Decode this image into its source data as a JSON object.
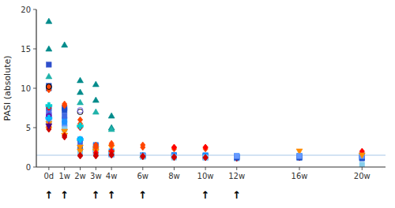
{
  "chart_data": {
    "type": "scatter",
    "y_label": "PASI (absolute)",
    "xlim": [
      -0.8,
      21.5
    ],
    "xticks": [
      {
        "value": 0,
        "label": "0d"
      },
      {
        "value": 1,
        "label": "1w"
      },
      {
        "value": 2,
        "label": "2w"
      },
      {
        "value": 3,
        "label": "3w"
      },
      {
        "value": 4,
        "label": "4w"
      },
      {
        "value": 6,
        "label": "6w"
      },
      {
        "value": 8,
        "label": "8w"
      },
      {
        "value": 10,
        "label": "10w"
      },
      {
        "value": 12,
        "label": "12w"
      },
      {
        "value": 16,
        "label": "16w"
      },
      {
        "value": 20,
        "label": "20w"
      }
    ],
    "ylim": [
      0,
      20
    ],
    "yticks": [
      0,
      5,
      10,
      15,
      20
    ],
    "grid": false,
    "reference_line": {
      "value": 1.5,
      "color": "#A8C8E8"
    },
    "annotations": [
      {
        "x": 0,
        "text": "↑"
      },
      {
        "x": 1,
        "text": "↑"
      },
      {
        "x": 3,
        "text": "↑"
      },
      {
        "x": 4,
        "text": "↑"
      },
      {
        "x": 6,
        "text": "↑"
      },
      {
        "x": 10,
        "text": "↑"
      },
      {
        "x": 12,
        "text": "↑"
      }
    ],
    "series": [
      {
        "color": "#008B8B",
        "marker": "triangle-up",
        "x": [
          0,
          1,
          2,
          3,
          4,
          6
        ],
        "values": [
          18.5,
          15.5,
          11.0,
          10.5,
          5.0,
          1.5
        ]
      },
      {
        "color": "#008B8B",
        "marker": "triangle-up",
        "x": [
          0,
          2,
          3,
          4
        ],
        "values": [
          15.0,
          9.5,
          8.5,
          6.5
        ]
      },
      {
        "color": "#20B2AA",
        "marker": "triangle-up",
        "x": [
          0,
          2,
          3,
          4
        ],
        "values": [
          11.5,
          8.2,
          7.0,
          4.8
        ]
      },
      {
        "color": "#2F4FCC",
        "marker": "square",
        "x": [
          0
        ],
        "values": [
          13.0
        ]
      },
      {
        "color": "#1E4FCC",
        "marker": "square",
        "x": [
          0,
          1,
          2,
          3,
          4,
          6,
          8,
          10,
          12,
          16,
          20
        ],
        "values": [
          10.3,
          7.5,
          2.0,
          2.0,
          1.6,
          1.4,
          1.5,
          1.4,
          1.3,
          1.3,
          1.5
        ]
      },
      {
        "color": "#1E4FCC",
        "marker": "square",
        "x": [
          0,
          1,
          2,
          3,
          4,
          6,
          8,
          10,
          12,
          16,
          20
        ],
        "values": [
          10.0,
          7.2,
          2.5,
          2.3,
          1.7,
          1.4,
          1.4,
          1.3,
          1.3,
          1.3,
          1.2
        ]
      },
      {
        "color": "#1E90FF",
        "marker": "square",
        "x": [
          0,
          1,
          2,
          3,
          4,
          6,
          8,
          10,
          12,
          16,
          20
        ],
        "values": [
          7.5,
          6.0,
          3.5,
          2.8,
          2.0,
          1.4,
          1.4,
          1.3,
          1.3,
          1.4,
          1.2
        ]
      },
      {
        "color": "#4169E1",
        "marker": "square",
        "x": [
          0,
          1,
          2,
          3,
          4
        ],
        "values": [
          7.2,
          6.5,
          3.2,
          2.7,
          1.8
        ]
      },
      {
        "color": "#1E90FF",
        "marker": "square",
        "x": [
          0,
          1,
          2,
          3,
          4,
          6,
          8,
          10,
          12,
          16,
          20
        ],
        "values": [
          6.5,
          5.5,
          2.0,
          2.2,
          1.7,
          1.5,
          1.5,
          1.5,
          1.4,
          1.4,
          1.4
        ]
      },
      {
        "color": "#6699FF",
        "marker": "square",
        "x": [
          0,
          1,
          2,
          3,
          4,
          6,
          8,
          10,
          12,
          16,
          20
        ],
        "values": [
          6.0,
          5.0,
          1.8,
          1.9,
          1.6,
          1.4,
          1.3,
          1.2,
          1.2,
          1.2,
          1.3
        ]
      },
      {
        "color": "#87CEEB",
        "marker": "square",
        "x": [
          0,
          1,
          2,
          3,
          4,
          6,
          8,
          10,
          12,
          16,
          20
        ],
        "values": [
          5.8,
          4.8,
          1.7,
          1.8,
          1.6,
          1.3,
          1.2,
          1.2,
          1.1,
          1.2,
          0.3
        ]
      },
      {
        "color": "#FF8C00",
        "marker": "triangle-down",
        "x": [
          0,
          1,
          2,
          3,
          4,
          16
        ],
        "values": [
          5.5,
          4.5,
          2.5,
          2.3,
          2.5,
          2.0
        ]
      },
      {
        "color": "#FF8C00",
        "marker": "triangle-down",
        "x": [
          0,
          1,
          2,
          3,
          4
        ],
        "values": [
          4.8,
          4.0,
          2.0,
          2.0,
          1.8
        ]
      },
      {
        "color": "#FF4500",
        "marker": "diamond",
        "x": [
          0,
          1,
          2,
          3,
          4,
          6,
          8,
          10
        ],
        "values": [
          10.2,
          8.0,
          6.0,
          2.8,
          3.0,
          2.8,
          2.5,
          2.5
        ]
      },
      {
        "color": "#FF4500",
        "marker": "diamond",
        "x": [
          0,
          1,
          2,
          3,
          4,
          6,
          8,
          10
        ],
        "values": [
          9.8,
          7.8,
          5.5,
          2.5,
          2.8,
          2.5,
          2.3,
          2.3
        ]
      },
      {
        "color": "#FF0000",
        "marker": "diamond",
        "x": [
          0,
          2,
          3,
          4,
          8,
          10,
          20
        ],
        "values": [
          7.5,
          5.0,
          1.8,
          2.0,
          2.5,
          2.5,
          2.0
        ]
      },
      {
        "color": "#CC0000",
        "marker": "diamond",
        "x": [
          0,
          1,
          2,
          3,
          4,
          6,
          8,
          10,
          12,
          16,
          20
        ],
        "values": [
          5.2,
          4.0,
          1.5,
          1.5,
          1.6,
          1.4,
          1.3,
          1.2,
          1.2,
          1.2,
          1.3
        ]
      },
      {
        "color": "#CC0000",
        "marker": "diamond",
        "x": [
          0,
          1,
          2,
          3,
          4,
          6,
          8,
          10,
          12,
          16,
          20
        ],
        "values": [
          4.8,
          3.8,
          1.4,
          1.4,
          1.5,
          1.3,
          1.2,
          1.2,
          1.1,
          1.2,
          1.2
        ]
      },
      {
        "color": "#000000",
        "marker": "circle-open",
        "x": [
          0,
          2
        ],
        "values": [
          10.2,
          7.0
        ]
      },
      {
        "color": "#7B68EE",
        "marker": "circle-open",
        "x": [
          0,
          2
        ],
        "values": [
          6.8,
          7.2
        ]
      },
      {
        "color": "#6A0DAD",
        "marker": "circle",
        "x": [
          0
        ],
        "values": [
          6.5
        ]
      },
      {
        "color": "#9400D3",
        "marker": "triangle-down",
        "x": [
          0
        ],
        "values": [
          6.0
        ]
      },
      {
        "color": "#4B0082",
        "marker": "triangle-down",
        "x": [
          0
        ],
        "values": [
          5.2
        ]
      },
      {
        "color": "#00CED1",
        "marker": "plus",
        "x": [
          0,
          2
        ],
        "values": [
          7.8,
          5.2
        ]
      },
      {
        "color": "#00BFFF",
        "marker": "plus",
        "x": [
          0,
          2
        ],
        "values": [
          6.2,
          3.5
        ]
      },
      {
        "color": "#1E4FCC",
        "marker": "square",
        "x": [
          12,
          16,
          20
        ],
        "values": [
          1.2,
          1.2,
          1.1
        ]
      },
      {
        "color": "#6699FF",
        "marker": "square",
        "x": [
          12,
          16,
          20
        ],
        "values": [
          1.4,
          1.4,
          1.4
        ]
      },
      {
        "color": "#FF8C00",
        "marker": "triangle-down",
        "x": [
          20
        ],
        "values": [
          1.5
        ]
      }
    ]
  }
}
